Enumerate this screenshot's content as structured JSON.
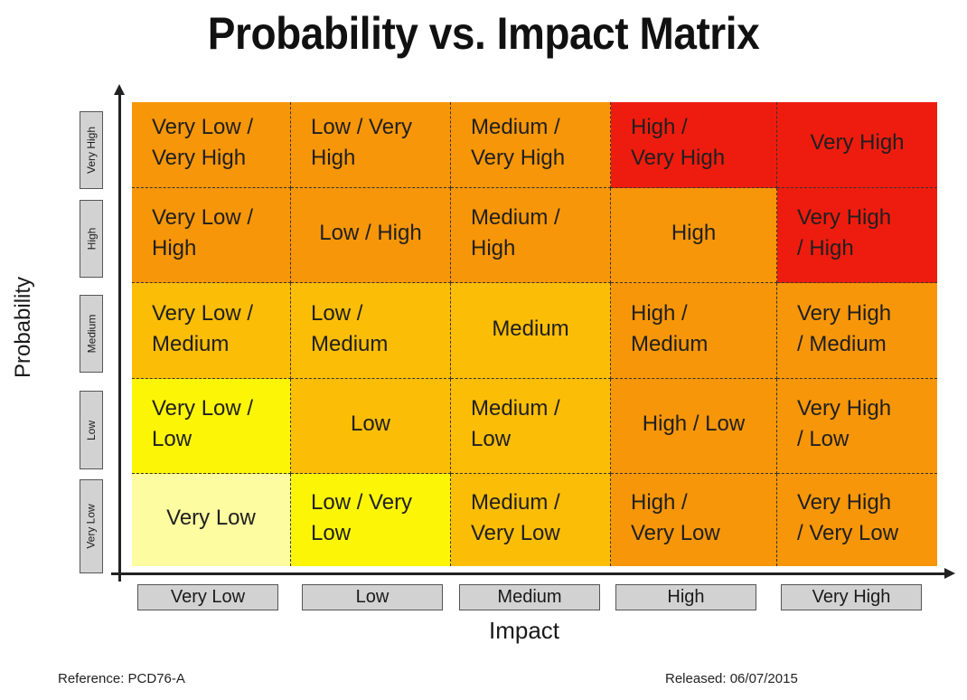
{
  "title": "Probability vs. Impact Matrix",
  "y_axis_label": "Probability",
  "x_axis_label": "Impact",
  "probability_levels": [
    "Very High",
    "High",
    "Medium",
    "Low",
    "Very Low"
  ],
  "impact_levels": [
    "Very Low",
    "Low",
    "Medium",
    "High",
    "Very High"
  ],
  "matrix": [
    [
      {
        "lines": [
          "Very Low /",
          "Very High"
        ],
        "color": "#f79608"
      },
      {
        "lines": [
          "Low / Very",
          "High"
        ],
        "color": "#f79608"
      },
      {
        "lines": [
          "Medium /",
          "Very High"
        ],
        "color": "#f79608"
      },
      {
        "lines": [
          "High /",
          "Very High"
        ],
        "color": "#ee1c0e"
      },
      {
        "lines": [
          "Very High"
        ],
        "color": "#ee1c0e"
      }
    ],
    [
      {
        "lines": [
          "Very Low /",
          "High"
        ],
        "color": "#f79608"
      },
      {
        "lines": [
          "Low / High"
        ],
        "color": "#f79608"
      },
      {
        "lines": [
          "Medium /",
          "High"
        ],
        "color": "#f79608"
      },
      {
        "lines": [
          "High"
        ],
        "color": "#f79608"
      },
      {
        "lines": [
          "Very High",
          "/ High"
        ],
        "color": "#ee1c0e"
      }
    ],
    [
      {
        "lines": [
          "Very Low /",
          "Medium"
        ],
        "color": "#fbbd06"
      },
      {
        "lines": [
          "Low /",
          "Medium"
        ],
        "color": "#fbbd06"
      },
      {
        "lines": [
          "Medium"
        ],
        "color": "#fbbd06"
      },
      {
        "lines": [
          "High /",
          "Medium"
        ],
        "color": "#f79608"
      },
      {
        "lines": [
          "Very High",
          "/ Medium"
        ],
        "color": "#f79608"
      }
    ],
    [
      {
        "lines": [
          "Very Low /",
          "Low"
        ],
        "color": "#fcf506"
      },
      {
        "lines": [
          "Low"
        ],
        "color": "#fbbd06"
      },
      {
        "lines": [
          "Medium /",
          "Low"
        ],
        "color": "#fbbd06"
      },
      {
        "lines": [
          "High / Low"
        ],
        "color": "#f79608"
      },
      {
        "lines": [
          "Very High",
          "/ Low"
        ],
        "color": "#f79608"
      }
    ],
    [
      {
        "lines": [
          "Very Low"
        ],
        "color": "#fdfca0"
      },
      {
        "lines": [
          "Low / Very",
          "Low"
        ],
        "color": "#fcf506"
      },
      {
        "lines": [
          "Medium /",
          "Very Low"
        ],
        "color": "#fbbd06"
      },
      {
        "lines": [
          "High /",
          "Very Low"
        ],
        "color": "#f79608"
      },
      {
        "lines": [
          "Very High",
          "/ Very Low"
        ],
        "color": "#f79608"
      }
    ]
  ],
  "footer": {
    "reference": "Reference: PCD76-A",
    "released": "Released: 06/07/2015"
  }
}
